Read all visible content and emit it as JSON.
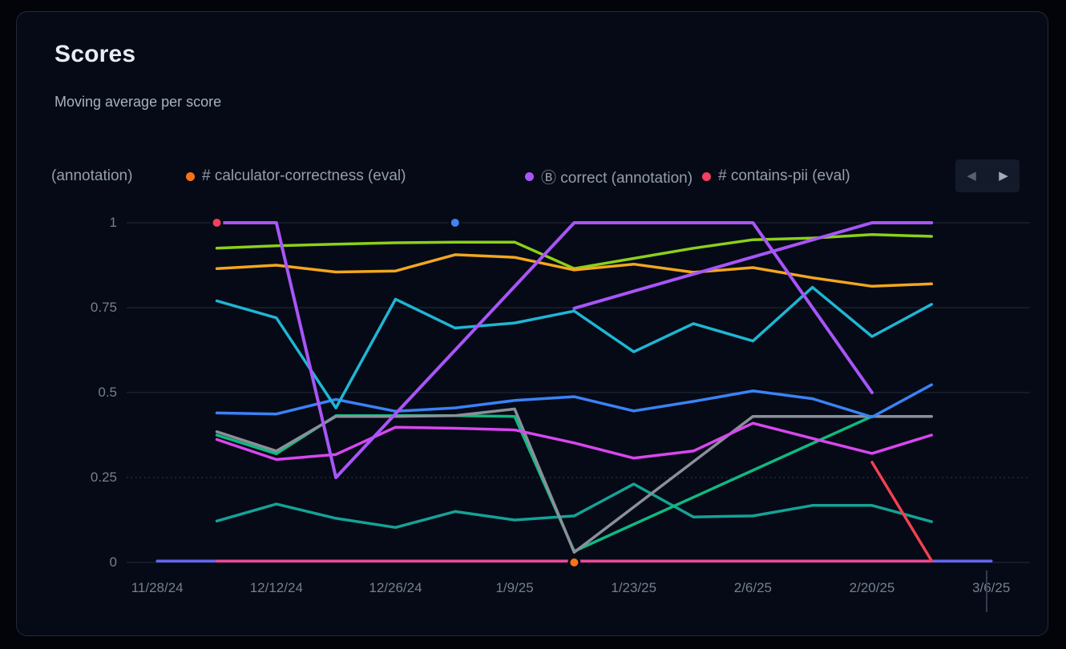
{
  "card": {
    "title": "Scores",
    "subtitle": "Moving average per score"
  },
  "theme": {
    "page_bg": "#020409",
    "card_bg": "#050a16",
    "card_border": "#222a3b",
    "grid_color": "#242b3b",
    "text_primary": "#e8edf4",
    "text_secondary": "#a9b2c0",
    "text_muted": "#767f90"
  },
  "legend": {
    "items": [
      {
        "label": "(annotation)",
        "color": null,
        "truncated_at_left": true
      },
      {
        "label": "# calculator-correctness (eval)",
        "color": "#f97316"
      },
      {
        "label": "Ⓑ correct (annotation)",
        "color": "#a855f7"
      },
      {
        "label": "# contains-pii (eval)",
        "color": "#f43f5e"
      }
    ],
    "nav": {
      "prev_icon": "◀",
      "next_icon": "▶"
    }
  },
  "chart_data": {
    "type": "line",
    "title": "Scores",
    "subtitle": "Moving average per score",
    "ylim": [
      0,
      1
    ],
    "grid": "horizontal-only",
    "x_note": "weekly data points; index 0 = 12/5/24, index 12 = 2/27/25; axis spans 11/28/24 (index -1) to 3/6/25 (index 13)",
    "x_ticks": [
      {
        "i": -1,
        "label": "11/28/24"
      },
      {
        "i": 1,
        "label": "12/12/24"
      },
      {
        "i": 3,
        "label": "12/26/24"
      },
      {
        "i": 5,
        "label": "1/9/25"
      },
      {
        "i": 7,
        "label": "1/23/25"
      },
      {
        "i": 9,
        "label": "2/6/25"
      },
      {
        "i": 11,
        "label": "2/20/25"
      },
      {
        "i": 13,
        "label": "3/6/25"
      }
    ],
    "y_ticks": [
      1,
      0.75,
      0.5,
      0.25,
      0
    ],
    "y_tick_labels": [
      "1",
      "0.75",
      "0.5",
      "0.25",
      "0"
    ],
    "series": [
      {
        "name": "indigo-baseline",
        "color": "#6366f1",
        "width": 3.5,
        "points": [
          [
            -1,
            0.004
          ],
          [
            13,
            0.004
          ]
        ]
      },
      {
        "name": "pink-baseline",
        "color": "#ec4899",
        "width": 3.5,
        "points": [
          [
            0,
            0.004
          ],
          [
            12,
            0.004
          ]
        ]
      },
      {
        "name": "teal-low",
        "color": "#15a296",
        "width": 3.5,
        "points": [
          [
            0,
            0.122
          ],
          [
            1,
            0.172
          ],
          [
            2,
            0.13
          ],
          [
            3,
            0.103
          ],
          [
            4,
            0.15
          ],
          [
            5,
            0.125
          ],
          [
            6,
            0.137
          ],
          [
            7,
            0.231
          ],
          [
            8,
            0.134
          ],
          [
            9,
            0.137
          ],
          [
            10,
            0.168
          ],
          [
            11,
            0.168
          ],
          [
            12,
            0.12
          ]
        ]
      },
      {
        "name": "emerald",
        "color": "#10b981",
        "width": 3.5,
        "points": [
          [
            0,
            0.375
          ],
          [
            1,
            0.32
          ],
          [
            2,
            0.432
          ],
          [
            3,
            0.432
          ],
          [
            4,
            0.432
          ],
          [
            5,
            0.43
          ],
          [
            6,
            0.033
          ],
          [
            11,
            0.43
          ]
        ]
      },
      {
        "name": "gray",
        "color": "#8a9099",
        "width": 3.5,
        "points": [
          [
            0,
            0.385
          ],
          [
            1,
            0.328
          ],
          [
            2,
            0.43
          ],
          [
            3,
            0.43
          ],
          [
            4,
            0.432
          ],
          [
            5,
            0.452
          ],
          [
            6,
            0.03
          ],
          [
            9,
            0.43
          ],
          [
            10,
            0.43
          ],
          [
            11,
            0.43
          ],
          [
            12,
            0.43
          ]
        ]
      },
      {
        "name": "magenta",
        "color": "#d946ef",
        "width": 3.5,
        "points": [
          [
            0,
            0.362
          ],
          [
            1,
            0.303
          ],
          [
            2,
            0.318
          ],
          [
            3,
            0.398
          ],
          [
            4,
            0.395
          ],
          [
            5,
            0.39
          ],
          [
            6,
            0.352
          ],
          [
            7,
            0.307
          ],
          [
            8,
            0.328
          ],
          [
            9,
            0.41
          ],
          [
            10,
            0.365
          ],
          [
            11,
            0.321
          ],
          [
            12,
            0.375
          ]
        ]
      },
      {
        "name": "blue",
        "color": "#3b82f6",
        "width": 3.5,
        "points": [
          [
            0,
            0.44
          ],
          [
            1,
            0.437
          ],
          [
            2,
            0.48
          ],
          [
            3,
            0.445
          ],
          [
            4,
            0.455
          ],
          [
            5,
            0.477
          ],
          [
            6,
            0.488
          ],
          [
            7,
            0.446
          ],
          [
            8,
            0.474
          ],
          [
            9,
            0.505
          ],
          [
            10,
            0.482
          ],
          [
            11,
            0.428
          ],
          [
            12,
            0.523
          ]
        ]
      },
      {
        "name": "cyan",
        "color": "#1fb6d4",
        "width": 3.5,
        "points": [
          [
            0,
            0.77
          ],
          [
            1,
            0.72
          ],
          [
            2,
            0.455
          ],
          [
            3,
            0.775
          ],
          [
            4,
            0.69
          ],
          [
            5,
            0.705
          ],
          [
            6,
            0.74
          ],
          [
            7,
            0.62
          ],
          [
            8,
            0.703
          ],
          [
            9,
            0.652
          ],
          [
            10,
            0.81
          ],
          [
            11,
            0.665
          ],
          [
            12,
            0.76
          ]
        ]
      },
      {
        "name": "lime",
        "color": "#8bd019",
        "width": 3.5,
        "points": [
          [
            0,
            0.925
          ],
          [
            1,
            0.932
          ],
          [
            2,
            0.937
          ],
          [
            3,
            0.941
          ],
          [
            4,
            0.943
          ],
          [
            5,
            0.943
          ],
          [
            6,
            0.865
          ],
          [
            7,
            0.895
          ],
          [
            8,
            0.925
          ],
          [
            9,
            0.95
          ],
          [
            10,
            0.955
          ],
          [
            11,
            0.965
          ],
          [
            12,
            0.96
          ]
        ]
      },
      {
        "name": "amber",
        "color": "#f2a71d",
        "width": 3.5,
        "points": [
          [
            0,
            0.865
          ],
          [
            1,
            0.875
          ],
          [
            2,
            0.855
          ],
          [
            3,
            0.858
          ],
          [
            4,
            0.906
          ],
          [
            5,
            0.898
          ],
          [
            6,
            0.861
          ],
          [
            7,
            0.878
          ],
          [
            8,
            0.854
          ],
          [
            9,
            0.868
          ],
          [
            10,
            0.838
          ],
          [
            11,
            0.813
          ],
          [
            12,
            0.82
          ]
        ]
      },
      {
        "name": "purple-a",
        "color": "#a855f7",
        "width": 4,
        "points": [
          [
            0,
            1
          ],
          [
            1,
            1
          ],
          [
            2,
            0.25
          ],
          [
            6,
            1
          ],
          [
            9,
            1
          ],
          [
            11,
            0.5
          ]
        ]
      },
      {
        "name": "purple-b",
        "color": "#a855f7",
        "width": 4,
        "points": [
          [
            6,
            0.748
          ],
          [
            11,
            1
          ],
          [
            12,
            1
          ]
        ]
      },
      {
        "name": "red-drop",
        "color": "#f24150",
        "width": 3.5,
        "points": [
          [
            11,
            0.295
          ],
          [
            12,
            0.005
          ]
        ]
      }
    ],
    "markers": [
      {
        "name": "red-point-marker",
        "color": "#f43f5e",
        "x": 0,
        "y": 1
      },
      {
        "name": "blue-point-marker",
        "color": "#3f83f8",
        "x": 4,
        "y": 1
      },
      {
        "name": "orange-point-marker",
        "color": "#f97316",
        "x": 6,
        "y": 0
      }
    ]
  }
}
